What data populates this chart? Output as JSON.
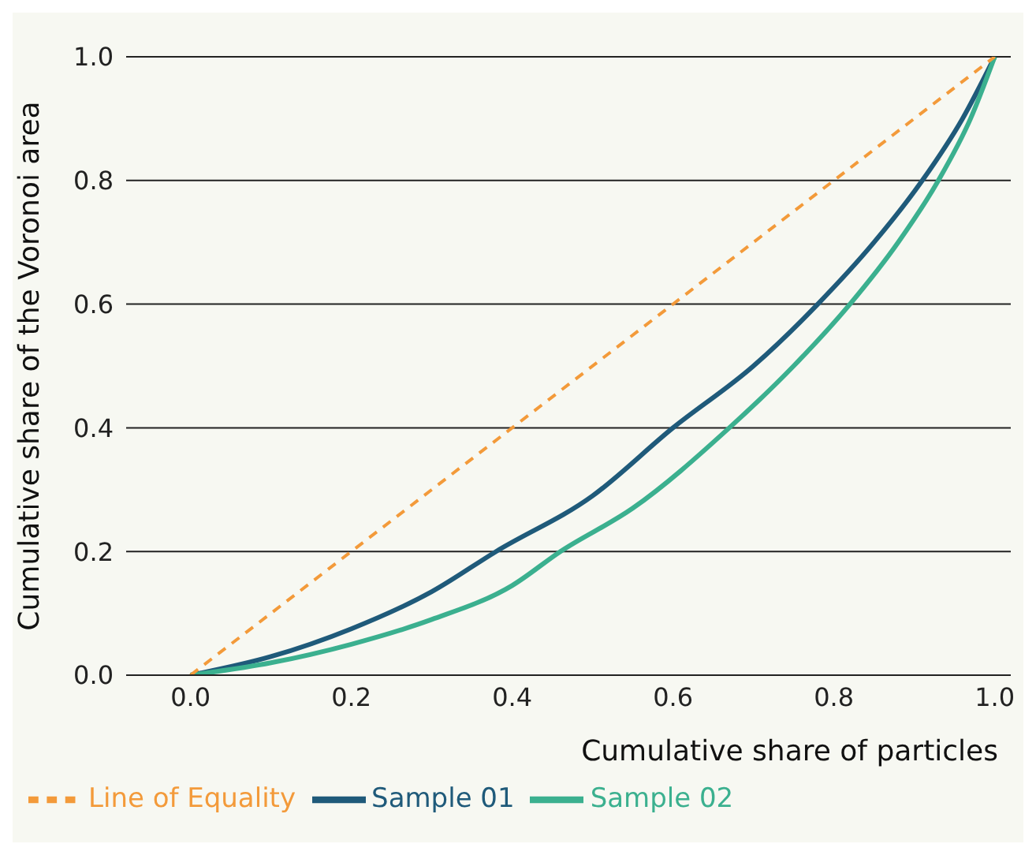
{
  "chart_data": {
    "type": "line",
    "xlabel": "Cumulative share of particles",
    "ylabel": "Cumulative share of the Voronoi area",
    "xlim": [
      -0.08,
      1.02
    ],
    "xticks": [
      {
        "value": 0,
        "label": "0.0"
      },
      0.2,
      0.4,
      0.6,
      0.8,
      {
        "value": 1,
        "label": "1.0"
      }
    ],
    "ylim": [
      0,
      1
    ],
    "yticks": [
      {
        "value": 0,
        "label": "0.0"
      },
      0.2,
      0.4,
      0.6,
      0.8,
      {
        "value": 1,
        "label": "1.0"
      }
    ],
    "grid": "y",
    "legend": "bottom",
    "marker": "none",
    "series": [
      {
        "name": "Sample 01",
        "color": "#1f5a7a",
        "line_style": "solid",
        "x": [
          0,
          0.1,
          0.2,
          0.3,
          0.38,
          0.5,
          0.6,
          0.7,
          0.78,
          0.85,
          0.91,
          0.96,
          1
        ],
        "values": [
          0,
          0.03,
          0.075,
          0.135,
          0.2,
          0.29,
          0.4,
          0.5,
          0.6,
          0.7,
          0.8,
          0.9,
          1
        ]
      },
      {
        "name": "Sample 02",
        "color": "#3bb08f",
        "line_style": "solid",
        "x": [
          0,
          0.1,
          0.2,
          0.3,
          0.4,
          0.46,
          0.55,
          0.67,
          0.75,
          0.82,
          0.88,
          0.93,
          0.97,
          1
        ],
        "values": [
          0,
          0.02,
          0.05,
          0.09,
          0.145,
          0.2,
          0.27,
          0.4,
          0.5,
          0.6,
          0.7,
          0.8,
          0.9,
          1
        ]
      },
      {
        "name": "Line of Equality",
        "color": "#f39a3a",
        "line_style": "dashed",
        "x": [
          0,
          1
        ],
        "values": [
          0,
          1
        ]
      }
    ]
  }
}
